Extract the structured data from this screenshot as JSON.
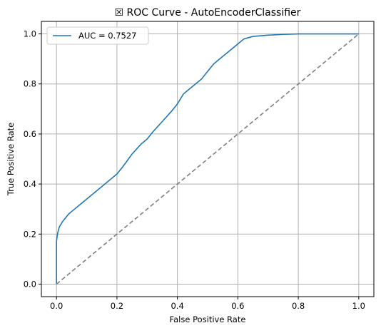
{
  "chart_data": {
    "type": "line",
    "title": "☒ ROC Curve - AutoEncoderClassifier",
    "xlabel": "False Positive Rate",
    "ylabel": "True Positive Rate",
    "xlim": [
      -0.05,
      1.05
    ],
    "ylim": [
      -0.05,
      1.05
    ],
    "xticks": [
      "0.0",
      "0.2",
      "0.4",
      "0.6",
      "0.8",
      "1.0"
    ],
    "yticks": [
      "0.0",
      "0.2",
      "0.4",
      "0.6",
      "0.8",
      "1.0"
    ],
    "grid": true,
    "legend_position": "upper-left",
    "series": [
      {
        "name": "AUC = 0.7527",
        "color": "#1f77b4",
        "style": "solid",
        "x": [
          0.0,
          0.0,
          0.002,
          0.005,
          0.01,
          0.02,
          0.03,
          0.04,
          0.05,
          0.06,
          0.08,
          0.1,
          0.12,
          0.15,
          0.18,
          0.2,
          0.22,
          0.25,
          0.28,
          0.3,
          0.32,
          0.35,
          0.38,
          0.4,
          0.42,
          0.45,
          0.48,
          0.5,
          0.52,
          0.55,
          0.58,
          0.6,
          0.62,
          0.65,
          0.7,
          0.75,
          0.8,
          0.85,
          0.9,
          0.95,
          1.0
        ],
        "y": [
          0.0,
          0.17,
          0.19,
          0.21,
          0.23,
          0.25,
          0.265,
          0.28,
          0.29,
          0.3,
          0.32,
          0.34,
          0.36,
          0.39,
          0.42,
          0.44,
          0.47,
          0.52,
          0.56,
          0.58,
          0.61,
          0.65,
          0.69,
          0.72,
          0.76,
          0.79,
          0.82,
          0.85,
          0.88,
          0.91,
          0.94,
          0.96,
          0.98,
          0.99,
          0.995,
          0.998,
          1.0,
          1.0,
          1.0,
          1.0,
          1.0
        ]
      },
      {
        "color": "#808080",
        "style": "dashed",
        "x": [
          0.0,
          1.0
        ],
        "y": [
          0.0,
          1.0
        ]
      }
    ]
  }
}
